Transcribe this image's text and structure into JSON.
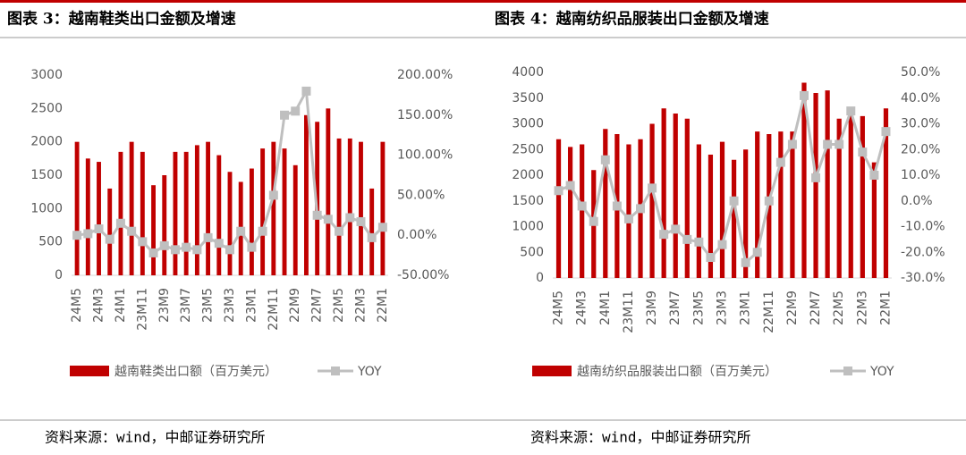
{
  "chart_data": [
    {
      "type": "bar_line",
      "title": "图表 3：越南鞋类出口金额及增速",
      "categories": [
        "24M5",
        null,
        "24M3",
        null,
        "24M1",
        null,
        "23M11",
        null,
        "23M9",
        null,
        "23M7",
        null,
        "23M5",
        null,
        "23M3",
        null,
        "23M1",
        null,
        "22M11",
        null,
        "22M9",
        null,
        "22M7",
        null,
        "22M5",
        null,
        "22M3",
        null,
        "22M1"
      ],
      "series": [
        {
          "name": "越南鞋类出口额（百万美元）",
          "type": "bar",
          "color": "#c00000",
          "values": [
            2000,
            1750,
            1700,
            1300,
            1850,
            2000,
            1850,
            1350,
            1500,
            1850,
            1850,
            1950,
            2000,
            1800,
            1550,
            1400,
            1600,
            1900,
            2000,
            1900,
            1650,
            2400,
            2300,
            2500,
            2050,
            2050,
            2000,
            1300,
            2000
          ]
        },
        {
          "name": "YOY",
          "type": "line",
          "axis": "y2",
          "color": "#bfbfbf",
          "values": [
            0,
            2,
            8,
            -5,
            15,
            5,
            -8,
            -22,
            -13,
            -18,
            -15,
            -18,
            -3,
            -10,
            -18,
            5,
            -15,
            5,
            50,
            150,
            155,
            180,
            25,
            20,
            5,
            22,
            17,
            -3,
            10
          ]
        }
      ],
      "ylim": [
        0,
        3000
      ],
      "yticks": [
        0,
        500,
        1000,
        1500,
        2000,
        2500,
        3000
      ],
      "y2lim": [
        -50,
        200
      ],
      "y2ticks": [
        {
          "value": -50,
          "label": "-50.00%"
        },
        {
          "value": 0,
          "label": "0.00%"
        },
        {
          "value": 50,
          "label": "50.00%"
        },
        {
          "value": 100,
          "label": "100.00%"
        },
        {
          "value": 150,
          "label": "150.00%"
        },
        {
          "value": 200,
          "label": "200.00%"
        }
      ],
      "source": "资料来源：wind，中邮证券研究所"
    },
    {
      "type": "bar_line",
      "title": "图表 4：越南纺织品服装出口金额及增速",
      "categories": [
        "24M5",
        null,
        "24M3",
        null,
        "24M1",
        null,
        "23M11",
        null,
        "23M9",
        null,
        "23M7",
        null,
        "23M5",
        null,
        "23M3",
        null,
        "23M1",
        null,
        "22M11",
        null,
        "22M9",
        null,
        "22M7",
        null,
        "22M5",
        null,
        "22M3",
        null,
        "22M1"
      ],
      "series": [
        {
          "name": "越南纺织品服装出口额（百万美元）",
          "type": "bar",
          "color": "#c00000",
          "values": [
            2700,
            2550,
            2600,
            2100,
            2900,
            2800,
            2600,
            2700,
            3000,
            3300,
            3200,
            3100,
            2600,
            2400,
            2650,
            2300,
            2500,
            2850,
            2800,
            2850,
            2850,
            3800,
            3600,
            3650,
            3100,
            3250,
            3150,
            2250,
            3300
          ]
        },
        {
          "name": "YOY",
          "type": "line",
          "axis": "y2",
          "color": "#bfbfbf",
          "values": [
            4,
            6,
            -2,
            -8,
            16,
            -2,
            -7,
            -3,
            5,
            -13,
            -11,
            -15,
            -16,
            -22,
            -17,
            0,
            -24,
            -20,
            0,
            15,
            22,
            41,
            9,
            22,
            22,
            35,
            19,
            10,
            27
          ]
        }
      ],
      "ylim": [
        0,
        4000
      ],
      "yticks": [
        0,
        500,
        1000,
        1500,
        2000,
        2500,
        3000,
        3500,
        4000
      ],
      "y2lim": [
        -30,
        50
      ],
      "y2ticks": [
        {
          "value": -30,
          "label": "-30.0%"
        },
        {
          "value": -20,
          "label": "-20.0%"
        },
        {
          "value": -10,
          "label": "-10.0%"
        },
        {
          "value": 0,
          "label": "0.0%"
        },
        {
          "value": 10,
          "label": "10.0%"
        },
        {
          "value": 20,
          "label": "20.0%"
        },
        {
          "value": 30,
          "label": "30.0%"
        },
        {
          "value": 40,
          "label": "40.0%"
        },
        {
          "value": 50,
          "label": "50.0%"
        }
      ],
      "source": "资料来源：wind，中邮证券研究所"
    }
  ]
}
